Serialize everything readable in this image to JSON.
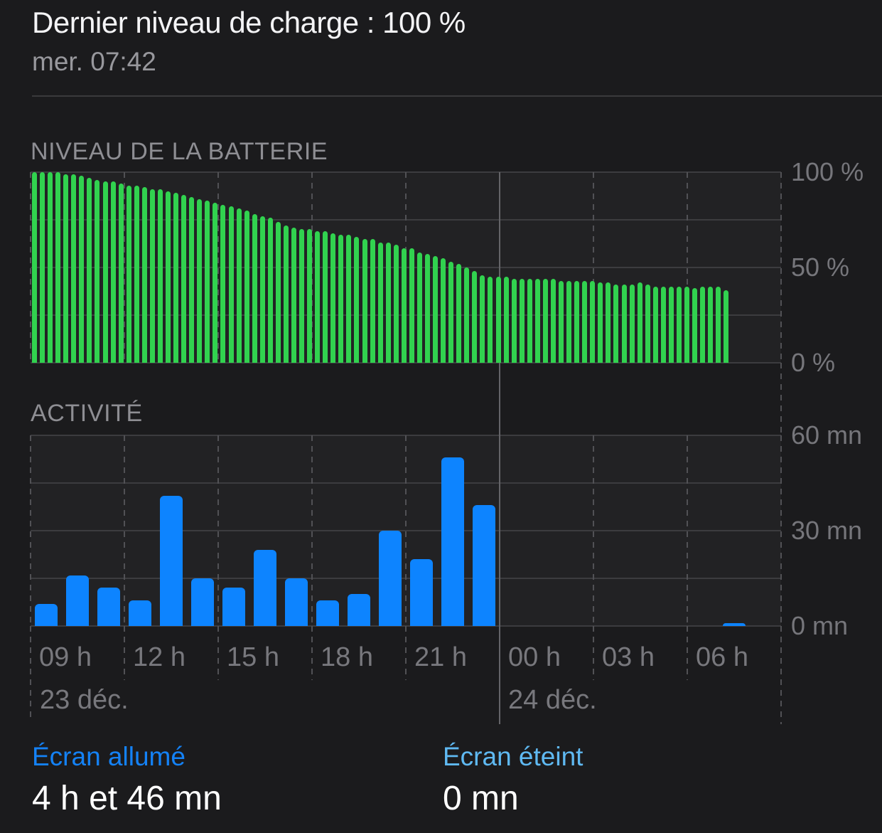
{
  "header": {
    "title": "Dernier niveau de charge : 100 %",
    "subtitle": "mer. 07:42"
  },
  "sections": {
    "battery_title": "NIVEAU DE LA BATTERIE",
    "activity_title": "ACTIVITÉ"
  },
  "colors": {
    "battery_bar": "#31d24f",
    "activity_bar": "#0d84ff",
    "screen_on_label": "#1482f6",
    "screen_off_label": "#5fb9f2"
  },
  "chart_data": [
    {
      "id": "battery",
      "type": "bar",
      "title": "NIVEAU DE LA BATTERIE",
      "unit": "%",
      "ylim": [
        0,
        100
      ],
      "interval_minutes": 15,
      "first_slot_starts_at": "09:00 23 déc.",
      "yticks": [
        {
          "value": 100,
          "label": "100 %"
        },
        {
          "value": 50,
          "label": "50 %"
        },
        {
          "value": 0,
          "label": "0 %"
        }
      ],
      "minor_gridlines": [
        75,
        25
      ],
      "values": [
        100,
        100,
        100,
        100,
        99,
        99,
        98,
        97,
        96,
        95,
        95,
        94,
        93,
        93,
        92,
        91,
        91,
        90,
        89,
        88,
        87,
        86,
        85,
        84,
        83,
        82,
        81,
        80,
        78,
        77,
        76,
        74,
        72,
        71,
        70,
        70,
        69,
        69,
        68,
        67,
        67,
        66,
        65,
        65,
        63,
        63,
        62,
        60,
        60,
        58,
        57,
        56,
        55,
        53,
        52,
        50,
        48,
        46,
        45,
        45,
        45,
        44,
        44,
        44,
        44,
        44,
        44,
        43,
        43,
        43,
        43,
        43,
        42,
        42,
        41,
        41,
        41,
        42,
        41,
        40,
        40,
        40,
        40,
        40,
        39,
        40,
        40,
        40,
        38
      ]
    },
    {
      "id": "activity",
      "type": "bar",
      "title": "ACTIVITÉ",
      "unit": "mn",
      "ylim": [
        0,
        60
      ],
      "interval_minutes": 60,
      "first_slot_starts_at": "09:00 23 déc.",
      "yticks": [
        {
          "value": 60,
          "label": "60 mn"
        },
        {
          "value": 30,
          "label": "30 mn"
        },
        {
          "value": 0,
          "label": "0 mn"
        }
      ],
      "minor_gridlines": [
        45,
        15
      ],
      "values": [
        7,
        16,
        12,
        8,
        41,
        15,
        12,
        24,
        15,
        8,
        10,
        30,
        21,
        53,
        38,
        0,
        0,
        0,
        0,
        0,
        0,
        0,
        1
      ]
    }
  ],
  "x_axis": {
    "hour_labels": [
      "09 h",
      "12 h",
      "15 h",
      "18 h",
      "21 h",
      "00 h",
      "03 h",
      "06 h"
    ],
    "date_left": "23 déc.",
    "date_right": "24 déc."
  },
  "stats": {
    "screen_on": {
      "label": "Écran allumé",
      "value": "4 h et 46 mn"
    },
    "screen_off": {
      "label": "Écran éteint",
      "value": "0 mn"
    }
  }
}
